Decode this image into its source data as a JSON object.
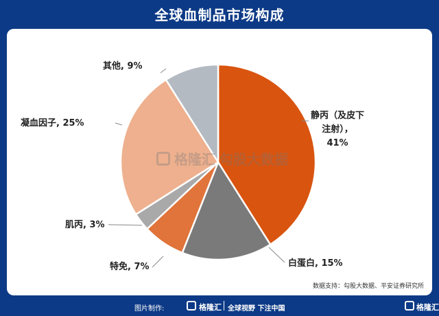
{
  "title": "全球血制品市场构成",
  "watermark": {
    "logo_text": "格隆汇",
    "text": "勾股大数据"
  },
  "source": "数据支持：勾股大数据、平安证券研究所",
  "footer": {
    "maker": "图片制作:",
    "brand": "格隆汇",
    "slogan": "全球视野 下注中国",
    "brand_right": "格隆汇"
  },
  "chart_data": {
    "type": "pie",
    "title": "全球血制品市场构成",
    "slices": [
      {
        "label": "静丙（及皮下注射）",
        "value": 41,
        "display": [
          "静丙（及皮下",
          "注射），",
          "41%"
        ],
        "color": "#d9540f"
      },
      {
        "label": "白蛋白",
        "value": 15,
        "display": [
          "白蛋白, 15%"
        ],
        "color": "#7a7a7a"
      },
      {
        "label": "特免",
        "value": 7,
        "display": [
          "特免, 7%"
        ],
        "color": "#e0743a"
      },
      {
        "label": "肌丙",
        "value": 3,
        "display": [
          "肌丙, 3%"
        ],
        "color": "#a9a9a9"
      },
      {
        "label": "凝血因子",
        "value": 25,
        "display": [
          "凝血因子, 25%"
        ],
        "color": "#eeb08e"
      },
      {
        "label": "其他",
        "value": 9,
        "display": [
          "其他, 9%"
        ],
        "color": "#b3bac2"
      }
    ]
  }
}
